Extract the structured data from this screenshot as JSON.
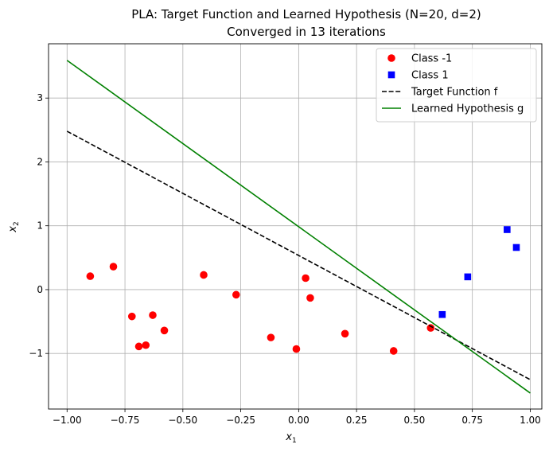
{
  "chart_data": {
    "type": "scatter",
    "title": "PLA: Target Function and Learned Hypothesis (N=20, d=2)",
    "subtitle": "Converged in 13 iterations",
    "xlabel": "x",
    "xlabel_sub": "1",
    "ylabel": "x",
    "ylabel_sub": "2",
    "xlim": [
      -1.08,
      1.05
    ],
    "ylim": [
      -1.87,
      3.85
    ],
    "xticks": [
      -1.0,
      -0.75,
      -0.5,
      -0.25,
      0.0,
      0.25,
      0.5,
      0.75,
      1.0
    ],
    "xtick_labels": [
      "−1.00",
      "−0.75",
      "−0.50",
      "−0.25",
      "0.00",
      "0.25",
      "0.50",
      "0.75",
      "1.00"
    ],
    "yticks": [
      -1,
      0,
      1,
      2,
      3
    ],
    "ytick_labels": [
      "−1",
      "0",
      "1",
      "2",
      "3"
    ],
    "grid": true,
    "legend_position": "top-right",
    "series": [
      {
        "name": "Class -1",
        "kind": "scatter",
        "marker": "circle",
        "color": "#ff0000",
        "points": [
          [
            -0.9,
            0.21
          ],
          [
            -0.8,
            0.36
          ],
          [
            -0.72,
            -0.42
          ],
          [
            -0.69,
            -0.89
          ],
          [
            -0.66,
            -0.87
          ],
          [
            -0.63,
            -0.4
          ],
          [
            -0.58,
            -0.64
          ],
          [
            -0.41,
            0.23
          ],
          [
            -0.27,
            -0.08
          ],
          [
            -0.12,
            -0.75
          ],
          [
            -0.01,
            -0.93
          ],
          [
            0.03,
            0.18
          ],
          [
            0.05,
            -0.13
          ],
          [
            0.2,
            -0.69
          ],
          [
            0.41,
            -0.96
          ],
          [
            0.57,
            -0.6
          ]
        ]
      },
      {
        "name": "Class 1",
        "kind": "scatter",
        "marker": "square",
        "color": "#0000ff",
        "points": [
          [
            0.62,
            -0.39
          ],
          [
            0.73,
            0.2
          ],
          [
            0.9,
            0.94
          ],
          [
            0.94,
            0.66
          ]
        ]
      },
      {
        "name": "Target Function f",
        "kind": "line",
        "style": "dashed",
        "color": "#000000",
        "points": [
          [
            -1.0,
            2.48
          ],
          [
            1.0,
            -1.41
          ]
        ]
      },
      {
        "name": "Learned Hypothesis g",
        "kind": "line",
        "style": "solid",
        "color": "#008000",
        "points": [
          [
            -1.0,
            3.59
          ],
          [
            1.0,
            -1.62
          ]
        ]
      }
    ]
  }
}
